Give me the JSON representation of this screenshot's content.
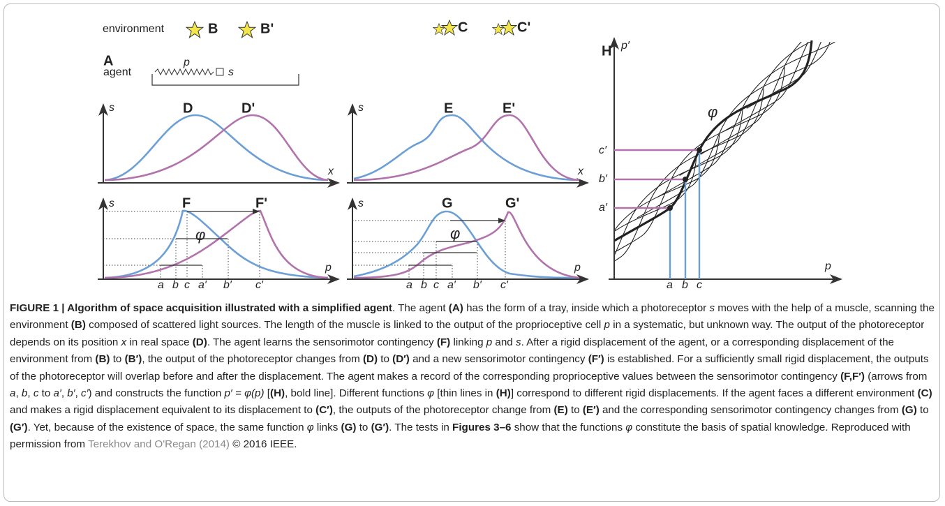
{
  "figure": {
    "labels": [
      "environment",
      "B",
      "B'",
      "C",
      "C'",
      "A",
      "agent",
      "p",
      "s",
      "s",
      "D",
      "D'",
      "x",
      "s",
      "E",
      "E'",
      "x",
      "s",
      "F",
      "F'",
      "φ",
      "p",
      "a",
      "b",
      "c",
      "a′",
      "b′",
      "c′",
      "s",
      "G",
      "G'",
      "φ",
      "p",
      "a",
      "b",
      "c",
      "a′",
      "b′",
      "c′",
      "H",
      "p′",
      "φ",
      "c′",
      "b′",
      "a′",
      "p",
      "a",
      "b",
      "c"
    ]
  },
  "caption": {
    "segments": [
      {
        "text": "FIGURE 1 | Algorithm of space acquisition illustrated with a simplified agent",
        "style": "bold"
      },
      {
        "text": ". The agent ",
        "style": "normal"
      },
      {
        "text": "(A)",
        "style": "bold"
      },
      {
        "text": " has the form of a tray, inside which a photoreceptor ",
        "style": "normal"
      },
      {
        "text": "s",
        "style": "italic"
      },
      {
        "text": " moves with the help of a muscle, scanning the environment ",
        "style": "normal"
      },
      {
        "text": "(B)",
        "style": "bold"
      },
      {
        "text": " composed of scattered light sources. The length of the muscle is linked to the output of the proprioceptive cell ",
        "style": "normal"
      },
      {
        "text": "p",
        "style": "italic"
      },
      {
        "text": " in a systematic, but unknown way. The output of the photoreceptor depends on its position ",
        "style": "normal"
      },
      {
        "text": "x",
        "style": "italic"
      },
      {
        "text": " in real space ",
        "style": "normal"
      },
      {
        "text": "(D)",
        "style": "bold"
      },
      {
        "text": ". The agent learns the sensorimotor contingency ",
        "style": "normal"
      },
      {
        "text": "(F)",
        "style": "bold"
      },
      {
        "text": " linking ",
        "style": "normal"
      },
      {
        "text": "p",
        "style": "italic"
      },
      {
        "text": " and ",
        "style": "normal"
      },
      {
        "text": "s",
        "style": "italic"
      },
      {
        "text": ". After a rigid displacement of the agent, or a corresponding displacement of the environment from ",
        "style": "normal"
      },
      {
        "text": "(B)",
        "style": "bold"
      },
      {
        "text": " to ",
        "style": "normal"
      },
      {
        "text": "(B′)",
        "style": "bold"
      },
      {
        "text": ", the output of the photoreceptor changes from ",
        "style": "normal"
      },
      {
        "text": "(D)",
        "style": "bold"
      },
      {
        "text": " to ",
        "style": "normal"
      },
      {
        "text": "(D′)",
        "style": "bold"
      },
      {
        "text": " and a new sensorimotor contingency ",
        "style": "normal"
      },
      {
        "text": "(F′)",
        "style": "bold"
      },
      {
        "text": " is established. For a sufficiently small rigid displacement, the outputs of the photoreceptor will overlap before and after the displacement. The agent makes a record of the corresponding proprioceptive values between the sensorimotor contingency ",
        "style": "normal"
      },
      {
        "text": "(F,F′)",
        "style": "bold"
      },
      {
        "text": " (arrows from ",
        "style": "normal"
      },
      {
        "text": "a",
        "style": "italic"
      },
      {
        "text": ", ",
        "style": "normal"
      },
      {
        "text": "b",
        "style": "italic"
      },
      {
        "text": ", ",
        "style": "normal"
      },
      {
        "text": "c",
        "style": "italic"
      },
      {
        "text": " to ",
        "style": "normal"
      },
      {
        "text": "a′",
        "style": "italic"
      },
      {
        "text": ", ",
        "style": "normal"
      },
      {
        "text": "b′",
        "style": "italic"
      },
      {
        "text": ", ",
        "style": "normal"
      },
      {
        "text": "c′",
        "style": "italic"
      },
      {
        "text": ") and constructs the function ",
        "style": "normal"
      },
      {
        "text": "p′ = φ(p)",
        "style": "italic"
      },
      {
        "text": " [",
        "style": "normal"
      },
      {
        "text": "(H)",
        "style": "bold"
      },
      {
        "text": ", bold line]. Different functions ",
        "style": "normal"
      },
      {
        "text": "φ",
        "style": "italic"
      },
      {
        "text": " [thin lines in ",
        "style": "normal"
      },
      {
        "text": "(H)",
        "style": "bold"
      },
      {
        "text": "] correspond to different rigid displacements. If the agent faces a different environment ",
        "style": "normal"
      },
      {
        "text": "(C)",
        "style": "bold"
      },
      {
        "text": " and makes a rigid displacement equivalent to its displacement to ",
        "style": "normal"
      },
      {
        "text": "(C′)",
        "style": "bold"
      },
      {
        "text": ", the outputs of the photoreceptor change from ",
        "style": "normal"
      },
      {
        "text": "(E)",
        "style": "bold"
      },
      {
        "text": " to ",
        "style": "normal"
      },
      {
        "text": "(E′)",
        "style": "bold"
      },
      {
        "text": " and the corresponding sensorimotor contingency changes from ",
        "style": "normal"
      },
      {
        "text": "(G)",
        "style": "bold"
      },
      {
        "text": " to ",
        "style": "normal"
      },
      {
        "text": "(G′)",
        "style": "bold"
      },
      {
        "text": ". Yet, because of the existence of space, the same function ",
        "style": "normal"
      },
      {
        "text": "φ",
        "style": "italic"
      },
      {
        "text": " links ",
        "style": "normal"
      },
      {
        "text": "(G)",
        "style": "bold"
      },
      {
        "text": " to ",
        "style": "normal"
      },
      {
        "text": "(G′)",
        "style": "bold"
      },
      {
        "text": ". The tests in ",
        "style": "normal"
      },
      {
        "text": "Figures 3–6",
        "style": "bold"
      },
      {
        "text": " show that the functions ",
        "style": "normal"
      },
      {
        "text": "φ",
        "style": "italic"
      },
      {
        "text": " constitute the basis of spatial knowledge. Reproduced with permission from ",
        "style": "normal"
      },
      {
        "text": "Terekhov and O'Regan (2014)",
        "style": "link"
      },
      {
        "text": " © 2016 IEEE.",
        "style": "normal"
      }
    ]
  }
}
